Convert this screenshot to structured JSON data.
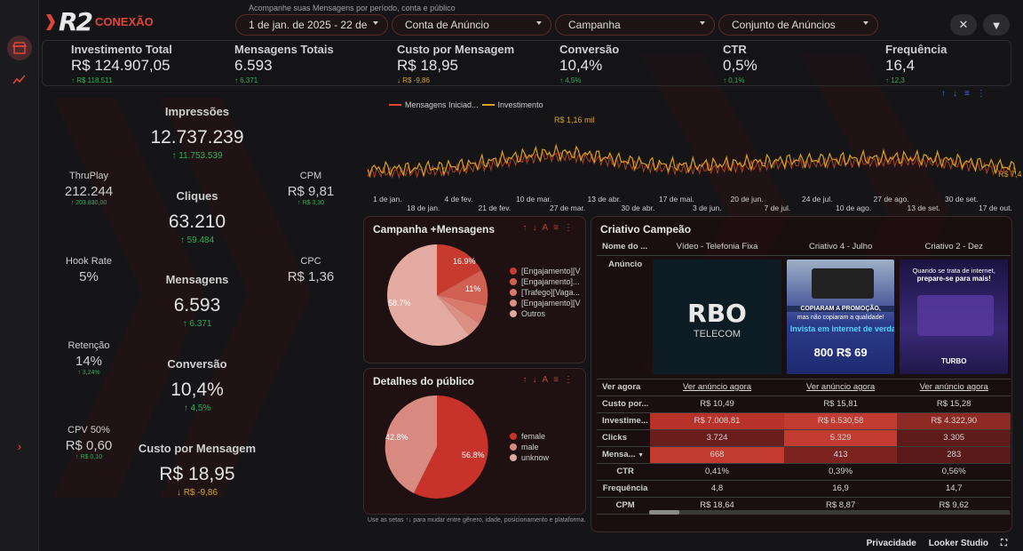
{
  "app": {
    "logo_text": "R2",
    "logo_sub": "CONEXÃO",
    "subtitle": "Acompanhe suas Mensagens por período, conta e público"
  },
  "filters": {
    "date": "1 de jan. de 2025 - 22 de",
    "account": "Conta de Anúncio",
    "campaign": "Campanha",
    "adset": "Conjunto de Anúncios"
  },
  "kpis": [
    {
      "title": "Investimento Total",
      "value": "R$ 124.907,05",
      "delta": "↑ R$ 118.511",
      "dir": "up"
    },
    {
      "title": "Mensagens Totais",
      "value": "6.593",
      "delta": "↑ 6.371",
      "dir": "up"
    },
    {
      "title": "Custo por Mensagem",
      "value": "R$ 18,95",
      "delta": "↓ R$ -9,86",
      "dir": "down"
    },
    {
      "title": "Conversão",
      "value": "10,4%",
      "delta": "↑ 4,5%",
      "dir": "up"
    },
    {
      "title": "CTR",
      "value": "0,5%",
      "delta": "↑ 0,1%",
      "dir": "up"
    },
    {
      "title": "Frequência",
      "value": "16,4",
      "delta": "↑ 12,3",
      "dir": "up"
    }
  ],
  "left": {
    "impressoes": {
      "title": "Impressões",
      "value": "12.737.239",
      "delta": "↑ 11.753.539"
    },
    "thruplay": {
      "title": "ThruPlay",
      "value": "212.244",
      "delta": "↑ 203.830,00"
    },
    "cpm": {
      "title": "CPM",
      "value": "R$ 9,81",
      "delta": "↑ R$ 3,30"
    },
    "cliques": {
      "title": "Cliques",
      "value": "63.210",
      "delta": "↑ 59.484"
    },
    "hook": {
      "title": "Hook Rate",
      "value": "5%"
    },
    "cpc": {
      "title": "CPC",
      "value": "R$ 1,36"
    },
    "mensagens": {
      "title": "Mensagens",
      "value": "6.593",
      "delta": "↑ 6.371"
    },
    "retencao": {
      "title": "Retenção",
      "value": "14%",
      "delta": "↑ 3,24%"
    },
    "conversao": {
      "title": "Conversão",
      "value": "10,4%",
      "delta": "↑ 4,5%"
    },
    "cpv": {
      "title": "CPV 50%",
      "value": "R$ 0,60",
      "delta": "↑ R$ 0,10"
    },
    "custo": {
      "title": "Custo por Mensagem",
      "value": "R$ 18,95",
      "delta": "↓ R$ -9,86"
    }
  },
  "timeseries": {
    "legend": [
      "Mensagens Iniciad...",
      "Investimento"
    ],
    "peak_label": "R$ 1,16 mil",
    "end_label": "R$ 7,4",
    "ticks_top": [
      "1 de jan.",
      "4 de fev.",
      "10 de mar.",
      "13 de abr.",
      "17 de mai.",
      "20 de jun.",
      "24 de jul.",
      "27 de ago.",
      "30 de set."
    ],
    "ticks_bottom": [
      "18 de jan.",
      "21 de fev.",
      "27 de mar.",
      "30 de abr.",
      "3 de jun.",
      "7 de jul.",
      "10 de ago.",
      "13 de set.",
      "17 de out."
    ]
  },
  "campaign_pie": {
    "title": "Campanha +Mensagens",
    "legend": [
      "[Engajamento][V",
      "[Engajamento]...",
      "[Trafego][Vaga...",
      "[Engajamento][V",
      "Outros"
    ],
    "labels": [
      "16.9%",
      "11%",
      "58.7%"
    ]
  },
  "audience_pie": {
    "title": "Detalhes do público",
    "legend": [
      "female",
      "male",
      "unknow"
    ],
    "labels": [
      "42.8%",
      "56.8%"
    ]
  },
  "footnote": "Use as setas ↑↓ para mudar entre gênero, idade, posicionamento e plataforma.",
  "creatives": {
    "title": "Criativo Campeão",
    "header_label": "Nome do ...",
    "names": [
      "Vídeo - Telefonia Fixa",
      "Criativo 4 - Julho",
      "Criativo 2 - Dez"
    ],
    "anuncio_label": "Anúncio",
    "img1_text": "RBO",
    "img1_sub": "TELECOM",
    "img2_line1": "COPIARAM A PROMOÇÃO,",
    "img2_line2": "mas não copiaram a qualidade!",
    "img2_line3": "Invista em internet de verdade!",
    "img2_price": "800 R$ 69",
    "img3_line1": "Quando se trata de internet,",
    "img3_line2": "prepare-se para mais!",
    "img3_brand": "TURBO",
    "rows": [
      {
        "label": "Ver agora",
        "values": [
          "Ver anúncio agora",
          "Ver anúncio agora",
          "Ver anúncio agora"
        ]
      },
      {
        "label": "Custo por...",
        "values": [
          "R$ 10,49",
          "R$ 15,81",
          "R$ 15,28"
        ]
      },
      {
        "label": "Investime...",
        "values": [
          "R$ 7.008,81",
          "R$ 6.530,58",
          "R$ 4.322,90"
        ]
      },
      {
        "label": "Clicks",
        "values": [
          "3.724",
          "5.329",
          "3.305"
        ]
      },
      {
        "label": "Mensa...",
        "values": [
          "668",
          "413",
          "283"
        ]
      },
      {
        "label": "CTR",
        "values": [
          "0,41%",
          "0,39%",
          "0,56%"
        ]
      },
      {
        "label": "Frequência",
        "values": [
          "4,8",
          "16,9",
          "14,7"
        ]
      },
      {
        "label": "CPM",
        "values": [
          "R$ 18,64",
          "R$ 8,87",
          "R$ 9,62"
        ]
      }
    ]
  },
  "bottom": {
    "privacy": "Privacidade",
    "studio": "Looker Studio"
  },
  "colors": {
    "accent": "#e0453a",
    "up": "#2eae58",
    "down": "#c9a22b",
    "line": "#d9a11b"
  }
}
